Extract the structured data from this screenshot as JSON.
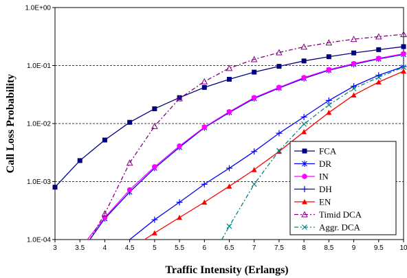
{
  "chart_data": {
    "type": "line",
    "xlabel": "Traffic Intensity (Erlangs)",
    "ylabel": "Call Loss Probability",
    "xlim": [
      3,
      10
    ],
    "ylim": [
      0.0001,
      1
    ],
    "yscale": "log",
    "x_ticks": [
      "3",
      "3.5",
      "4",
      "4.5",
      "5",
      "5.5",
      "6",
      "6.5",
      "7",
      "7.5",
      "8",
      "8.5",
      "9",
      "9.5",
      "10"
    ],
    "y_ticks": [
      "1.0E-04",
      "1.0E-03",
      "1.0E-02",
      "1.0E-01",
      "1.0E+00"
    ],
    "grid": "horizontal dashed",
    "legend_position": "bottom-right",
    "series": [
      {
        "name": "FCA",
        "color": "#000080",
        "marker": "square",
        "dash": "",
        "x": [
          3,
          3.5,
          4,
          4.5,
          5,
          5.5,
          6,
          6.5,
          7,
          7.5,
          8,
          8.5,
          9,
          9.5,
          10
        ],
        "y": [
          0.0008,
          0.0023,
          0.0052,
          0.0105,
          0.018,
          0.028,
          0.042,
          0.058,
          0.077,
          0.097,
          0.12,
          0.142,
          0.165,
          0.188,
          0.212
        ]
      },
      {
        "name": "DR",
        "color": "#0000ff",
        "marker": "asterisk",
        "dash": "",
        "x": [
          3.7,
          4,
          4.5,
          5,
          5.5,
          6,
          6.5,
          7,
          7.5,
          8,
          8.5,
          9,
          9.5,
          10
        ],
        "y": [
          0.0001,
          0.00023,
          0.00066,
          0.0017,
          0.0039,
          0.0085,
          0.0155,
          0.027,
          0.041,
          0.06,
          0.083,
          0.105,
          0.13,
          0.155
        ]
      },
      {
        "name": "IN",
        "color": "#ff00ff",
        "marker": "circle",
        "dash": "",
        "x": [
          3.65,
          4,
          4.5,
          5,
          5.5,
          6,
          6.5,
          7,
          7.5,
          8,
          8.5,
          9,
          9.5,
          10
        ],
        "y": [
          0.0001,
          0.00024,
          0.00072,
          0.0018,
          0.0041,
          0.0087,
          0.016,
          0.028,
          0.042,
          0.062,
          0.085,
          0.108,
          0.133,
          0.16
        ]
      },
      {
        "name": "DH",
        "color": "#0000ff",
        "marker": "plus",
        "dash": "",
        "x": [
          4.5,
          5,
          5.5,
          6,
          6.5,
          7,
          7.5,
          8,
          8.5,
          9,
          9.5,
          10
        ],
        "y": [
          0.0001,
          0.00022,
          0.00044,
          0.0009,
          0.0017,
          0.0033,
          0.0068,
          0.013,
          0.025,
          0.044,
          0.068,
          0.096
        ]
      },
      {
        "name": "EN",
        "color": "#ff0000",
        "marker": "triangle",
        "dash": "",
        "x": [
          4.8,
          5,
          5.5,
          6,
          6.5,
          7,
          7.5,
          8,
          8.5,
          9,
          9.5,
          10
        ],
        "y": [
          0.0001,
          0.00013,
          0.00024,
          0.00044,
          0.00083,
          0.0016,
          0.0033,
          0.0072,
          0.0155,
          0.031,
          0.052,
          0.08
        ]
      },
      {
        "name": "Timid DCA",
        "color": "#800080",
        "marker": "triangle-open",
        "dash": "6,3,2,3",
        "x": [
          3.7,
          4,
          4.5,
          5,
          5.5,
          6,
          6.5,
          7,
          7.5,
          8,
          8.5,
          9,
          9.5,
          10
        ],
        "y": [
          0.0001,
          0.00028,
          0.0021,
          0.009,
          0.027,
          0.053,
          0.09,
          0.128,
          0.168,
          0.21,
          0.248,
          0.285,
          0.315,
          0.345
        ]
      },
      {
        "name": "Aggr. DCA",
        "color": "#008080",
        "marker": "x",
        "dash": "6,3,2,3",
        "x": [
          6.35,
          6.5,
          7,
          7.5,
          8,
          8.5,
          9,
          9.5,
          10
        ],
        "y": [
          0.0001,
          0.00017,
          0.0009,
          0.0034,
          0.0098,
          0.021,
          0.04,
          0.063,
          0.094
        ]
      }
    ]
  }
}
